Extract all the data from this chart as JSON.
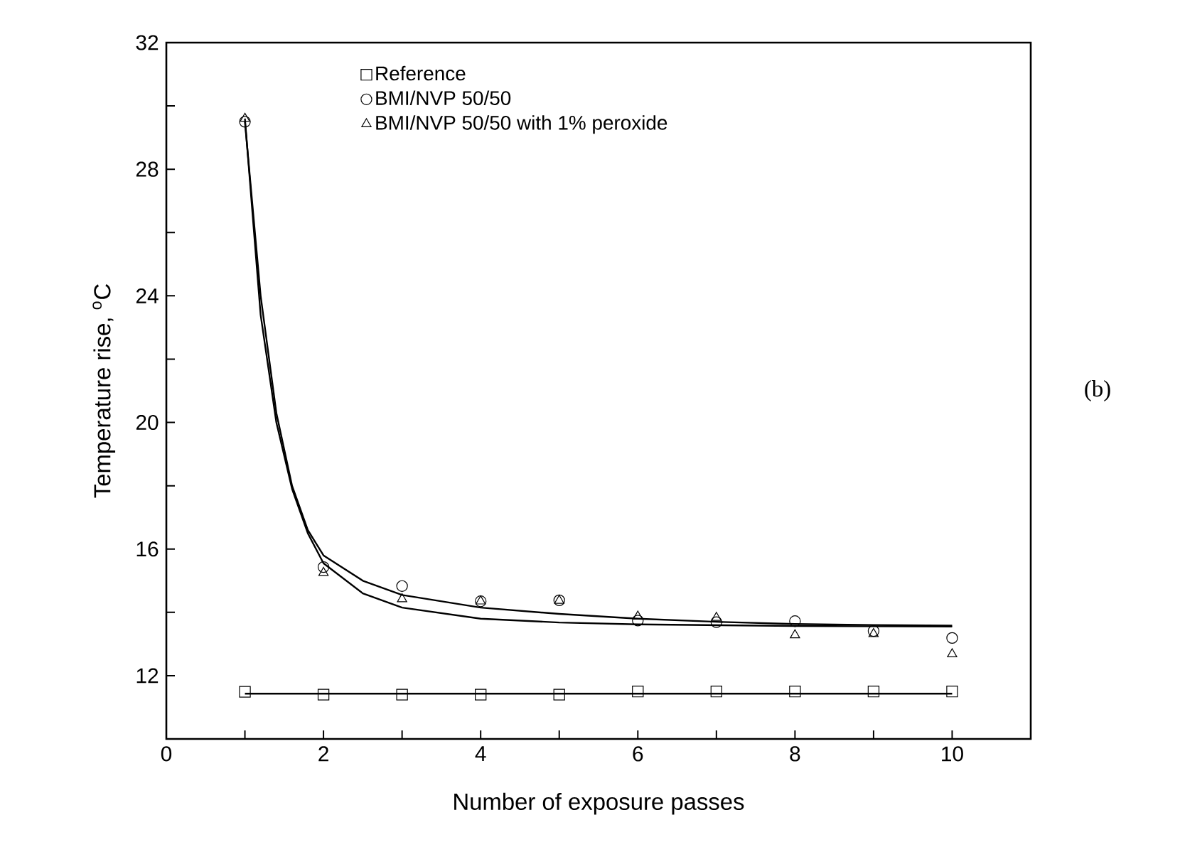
{
  "chart_data": {
    "type": "scatter",
    "xlabel": "Number of exposure passes",
    "ylabel": "Temperature rise, $^{o}$C",
    "x": [
      1,
      2,
      3,
      4,
      5,
      6,
      7,
      8,
      9,
      10
    ],
    "series": [
      {
        "name": "Reference",
        "color": "#000000",
        "marker": "square",
        "values": [
          11.49,
          11.4,
          11.4,
          11.4,
          11.4,
          11.5,
          11.5,
          11.5,
          11.5,
          11.5
        ]
      },
      {
        "name": "BMI/NVP 50/50",
        "color": "#000000",
        "marker": "circle",
        "values": [
          29.5,
          15.43,
          14.83,
          14.35,
          14.38,
          13.74,
          13.69,
          13.72,
          13.41,
          13.19
        ]
      },
      {
        "name": "BMI/NVP 50/50 with 1% peroxide",
        "color": "#000000",
        "marker": "triangle",
        "values": [
          29.6,
          15.25,
          14.42,
          14.35,
          14.37,
          13.87,
          13.83,
          13.28,
          13.32,
          12.68
        ]
      },
      {
        "type": "line",
        "color": "#000000",
        "x": [
          1,
          10
        ],
        "values": [
          11.43,
          11.43
        ]
      },
      {
        "type": "line",
        "color": "#000000",
        "x": [
          1,
          1.2,
          1.4,
          1.6,
          1.8,
          2,
          2.5,
          3,
          4,
          5,
          6,
          7,
          8,
          9,
          10
        ],
        "values": [
          29.5,
          24.0,
          20.3,
          18.0,
          16.6,
          15.8,
          15.0,
          14.55,
          14.15,
          13.95,
          13.8,
          13.7,
          13.63,
          13.6,
          13.58
        ]
      },
      {
        "type": "line",
        "color": "#000000",
        "x": [
          1,
          1.2,
          1.4,
          1.6,
          1.8,
          2,
          2.5,
          3,
          4,
          5,
          6,
          8,
          10
        ],
        "values": [
          29.6,
          23.4,
          20.0,
          17.9,
          16.5,
          15.55,
          14.6,
          14.15,
          13.8,
          13.68,
          13.62,
          13.57,
          13.55
        ]
      }
    ],
    "xlim": [
      0,
      11
    ],
    "ylim": [
      10,
      32
    ],
    "xticks": [
      0,
      {
        "value": 1,
        "label": null
      },
      2,
      {
        "value": 3,
        "label": null
      },
      4,
      {
        "value": 5,
        "label": null
      },
      6,
      {
        "value": 7,
        "label": null
      },
      8,
      {
        "value": 9,
        "label": null
      },
      10
    ],
    "yticks": [
      {
        "value": 10,
        "label": null
      },
      12,
      {
        "value": 14,
        "label": null
      },
      16,
      {
        "value": 18,
        "label": null
      },
      20,
      {
        "value": 22,
        "label": null
      },
      24,
      {
        "value": 26,
        "label": null
      },
      28,
      {
        "value": 30,
        "label": null
      },
      32
    ],
    "legend": "top",
    "annotations": [
      "(b)"
    ]
  }
}
